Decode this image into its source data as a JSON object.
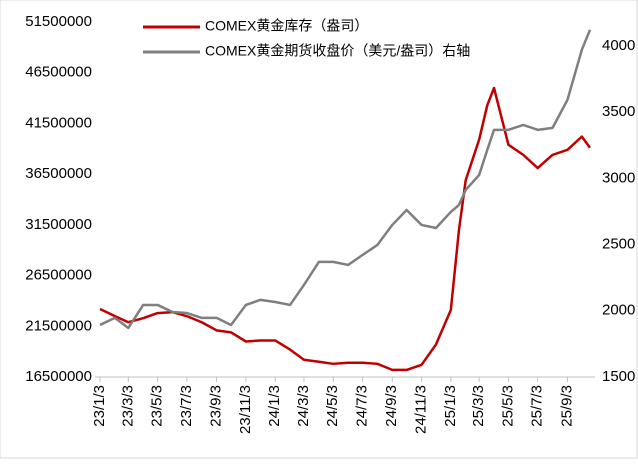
{
  "chart_data": {
    "type": "line",
    "x": [
      "2023-01-03",
      "2023-02-03",
      "2023-03-03",
      "2023-04-03",
      "2023-05-03",
      "2023-06-03",
      "2023-07-03",
      "2023-08-03",
      "2023-09-03",
      "2023-10-03",
      "2023-11-03",
      "2023-12-03",
      "2024-01-03",
      "2024-02-03",
      "2024-03-03",
      "2024-04-03",
      "2024-05-03",
      "2024-06-03",
      "2024-07-03",
      "2024-08-03",
      "2024-09-03",
      "2024-10-03",
      "2024-11-03",
      "2024-12-03",
      "2025-01-03",
      "2025-01-20",
      "2025-02-03",
      "2025-03-03",
      "2025-03-20",
      "2025-04-03",
      "2025-05-03",
      "2025-06-03",
      "2025-07-03",
      "2025-08-03",
      "2025-09-03",
      "2025-10-03",
      "2025-10-20"
    ],
    "series": [
      {
        "name": "COMEX黄金库存（盎司）",
        "color": "#c00000",
        "values": [
          23200000,
          22500000,
          21900000,
          22300000,
          22800000,
          22900000,
          22500000,
          21900000,
          21100000,
          20900000,
          20000000,
          20100000,
          20100000,
          19200000,
          18200000,
          18000000,
          17800000,
          17900000,
          17900000,
          17800000,
          17200000,
          17200000,
          17700000,
          19700000,
          23100000,
          31000000,
          35900000,
          39900000,
          43300000,
          45000000,
          39400000,
          38400000,
          37100000,
          38400000,
          38900000,
          40200000,
          39100000
        ]
      },
      {
        "name": "COMEX黄金期货收盘价（美元/盎司）右轴",
        "color": "#7f7f7f",
        "axis": "y2",
        "values": [
          1893,
          1946,
          1870,
          2044,
          2044,
          1991,
          1983,
          1946,
          1946,
          1893,
          2044,
          2082,
          2066,
          2044,
          2195,
          2369,
          2369,
          2346,
          2421,
          2497,
          2648,
          2761,
          2648,
          2625,
          2746,
          2799,
          2912,
          3025,
          3215,
          3366,
          3366,
          3403,
          3366,
          3381,
          3592,
          3970,
          4121
        ]
      }
    ],
    "xlim": [
      "2023-01-03",
      "2025-10-20"
    ],
    "xticks": [
      {
        "value": "2023-01-03",
        "label": "23/1/3"
      },
      {
        "value": "2023-03-03",
        "label": "23/3/3"
      },
      {
        "value": "2023-05-03",
        "label": "23/5/3"
      },
      {
        "value": "2023-07-03",
        "label": "23/7/3"
      },
      {
        "value": "2023-09-03",
        "label": "23/9/3"
      },
      {
        "value": "2023-11-03",
        "label": "23/11/3"
      },
      {
        "value": "2024-01-03",
        "label": "24/1/3"
      },
      {
        "value": "2024-03-03",
        "label": "24/3/3"
      },
      {
        "value": "2024-05-03",
        "label": "24/5/3"
      },
      {
        "value": "2024-07-03",
        "label": "24/7/3"
      },
      {
        "value": "2024-09-03",
        "label": "24/9/3"
      },
      {
        "value": "2024-11-03",
        "label": "24/11/3"
      },
      {
        "value": "2025-01-03",
        "label": "25/1/3"
      },
      {
        "value": "2025-03-03",
        "label": "25/3/3"
      },
      {
        "value": "2025-05-03",
        "label": "25/5/3"
      },
      {
        "value": "2025-07-03",
        "label": "25/7/3"
      },
      {
        "value": "2025-09-03",
        "label": "25/9/3"
      }
    ],
    "ylim": [
      16500000,
      51500000
    ],
    "yticks": [
      16500000,
      21500000,
      26500000,
      31500000,
      36500000,
      41500000,
      46500000,
      51500000
    ],
    "y2lim": [
      1500,
      4180
    ],
    "y2ticks": [
      1500,
      2000,
      2500,
      3000,
      3500,
      4000
    ]
  }
}
